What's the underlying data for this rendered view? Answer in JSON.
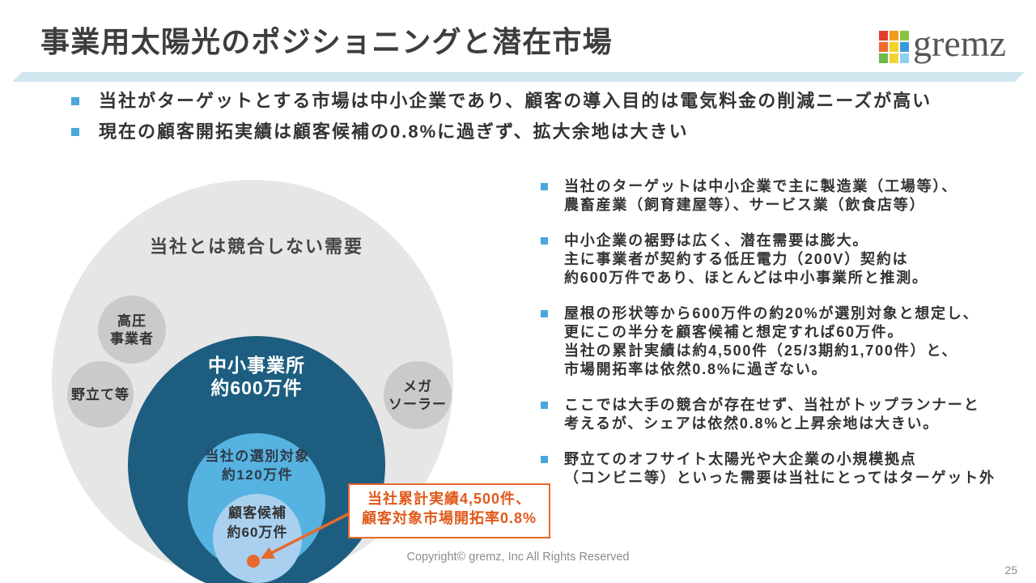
{
  "header": {
    "title": "事業用太陽光のポジショニングと潜在市場",
    "logo": {
      "text": "gremz",
      "mosaic_colors": [
        "#e53d2f",
        "#f29b21",
        "#8bc540",
        "#ef6c2d",
        "#f6cf2a",
        "#3b9ad6",
        "#6dbb4b",
        "#f3d23a",
        "#8fcfee"
      ]
    }
  },
  "summary_bullets": [
    "当社がターゲットとする市場は中小企業であり、顧客の導入目的は電気料金の削減ニーズが高い",
    "現在の顧客開拓実績は顧客候補の0.8%に過ぎず、拡大余地は大きい"
  ],
  "diagram": {
    "outer_label": "当社とは競合しない需要",
    "out_of_scope_segments": [
      {
        "lines": [
          "高圧",
          "事業者"
        ]
      },
      {
        "lines": [
          "野立て等"
        ]
      },
      {
        "lines": [
          "メガ",
          "ソーラー"
        ]
      }
    ],
    "sme_offices": {
      "name": "中小事業所",
      "count": "約600万件"
    },
    "selection_targets": {
      "name": "当社の選別対象",
      "count": "約120万件"
    },
    "customer_candidates": {
      "name": "顧客候補",
      "count": "約60万件"
    },
    "callout": {
      "lines": [
        "当社累計実績4,500件、",
        "顧客対象市場開拓率0.8%"
      ]
    }
  },
  "detail_bullets": [
    {
      "lines": [
        "当社のターゲットは中小企業で主に製造業（工場等）、",
        "農畜産業（飼育建屋等）、サービス業（飲食店等）"
      ]
    },
    {
      "lines": [
        "中小企業の裾野は広く、潜在需要は膨大。",
        "主に事業者が契約する低圧電力（200V）契約は",
        "約600万件であり、ほとんどは中小事業所と推測。"
      ]
    },
    {
      "lines": [
        "屋根の形状等から600万件の約20%が選別対象と想定し、",
        "更にこの半分を顧客候補と想定すれば60万件。",
        "当社の累計実績は約4,500件（25/3期約1,700件）と、",
        "市場開拓率は依然0.8%に過ぎない。"
      ]
    },
    {
      "lines": [
        "ここでは大手の競合が存在せず、当社がトップランナーと",
        "考えるが、シェアは依然0.8%と上昇余地は大きい。"
      ]
    },
    {
      "lines": [
        "野立てのオフサイト太陽光や大企業の小規模拠点",
        "（コンビニ等）といった需要は当社にとってはターゲット外"
      ]
    }
  ],
  "footer": {
    "copyright": "Copyright© gremz, Inc All Rights Reserved",
    "page_number": "25"
  },
  "icons": {
    "bullet": "square-bullet-icon",
    "logo": "mosaic-logo-icon",
    "callout_pointer": "arrow-head-icon"
  },
  "colors": {
    "title_text": "#3d3d3d",
    "body_text": "#333333",
    "accent_band": "#cfe6ef",
    "bullet_marker": "#4ba7db",
    "outer_circle": "#e6e6e6",
    "segment_circle": "#cacaca",
    "sme_circle": "#1d5e80",
    "selection_circle": "#56b2e1",
    "candidate_circle": "#a9d0ef",
    "highlight": "#e8692c",
    "callout_text": "#e05a1b",
    "logo_text": "#555555",
    "footer_text": "#8c8c8c"
  }
}
